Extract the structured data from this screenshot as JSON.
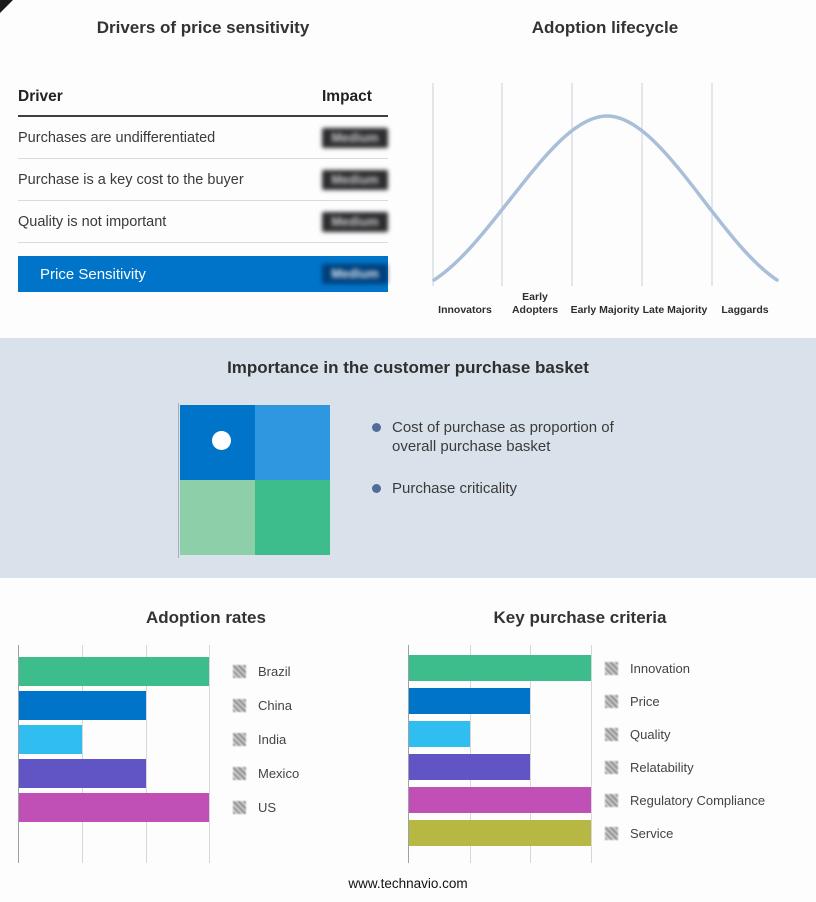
{
  "footer": {
    "url": "www.technavio.com"
  },
  "drivers": {
    "title": "Drivers of price sensitivity",
    "columns": {
      "driver": "Driver",
      "impact": "Impact"
    },
    "rows": [
      {
        "label": "Purchases are undifferentiated",
        "impact": "Medium"
      },
      {
        "label": "Purchase is a key cost to the buyer",
        "impact": "Medium"
      },
      {
        "label": "Quality is not important",
        "impact": "Medium"
      }
    ],
    "highlight": {
      "label": "Price Sensitivity",
      "impact": "Medium",
      "color": "#0074c8"
    }
  },
  "lifecycle": {
    "title": "Adoption lifecycle",
    "stages": [
      "Innovators",
      "Early Adopters",
      "Early Majority",
      "Late Majority",
      "Laggards"
    ],
    "curve_color": "#a9bed8"
  },
  "basket": {
    "title": "Importance in the customer purchase basket",
    "bullets": [
      "Cost of purchase as proportion of overall purchase basket",
      "Purchase criticality"
    ],
    "quadrant": {
      "top_left": "#0074c8",
      "top_right": "#2f97e0",
      "bottom_left": "#8ccfa8",
      "bottom_right": "#3ebd8c"
    }
  },
  "chart_data": [
    {
      "type": "line",
      "title": "Adoption lifecycle",
      "x": [
        "Innovators",
        "Early Adopters",
        "Early Majority",
        "Late Majority",
        "Laggards"
      ],
      "y_relative": [
        0.05,
        0.55,
        1.0,
        0.55,
        0.05
      ],
      "note": "Bell-shaped adoption curve, peak at Early Majority; no numeric axes shown",
      "grid": "vertical stage separators",
      "line_color": "#a9bed8"
    },
    {
      "type": "bar",
      "orientation": "horizontal",
      "title": "Adoption rates",
      "categories": [
        "Brazil",
        "China",
        "India",
        "Mexico",
        "US"
      ],
      "values": [
        3,
        2,
        1,
        2,
        3
      ],
      "value_basis": "estimated in gridline units (no tick labels shown)",
      "xlim": [
        0,
        3.3
      ],
      "colors": [
        "#3ebd8c",
        "#0074c8",
        "#30bdf0",
        "#6155c5",
        "#c050b5"
      ],
      "legend_position": "right"
    },
    {
      "type": "bar",
      "orientation": "horizontal",
      "title": "Key purchase criteria",
      "categories": [
        "Innovation",
        "Price",
        "Quality",
        "Relatability",
        "Regulatory Compliance",
        "Service"
      ],
      "values": [
        3,
        2,
        1,
        2,
        3,
        3
      ],
      "value_basis": "estimated in gridline units (no tick labels shown)",
      "xlim": [
        0,
        3.3
      ],
      "colors": [
        "#3ebd8c",
        "#0074c8",
        "#30bdf0",
        "#6155c5",
        "#c050b5",
        "#b6b843"
      ],
      "legend_position": "right"
    }
  ]
}
